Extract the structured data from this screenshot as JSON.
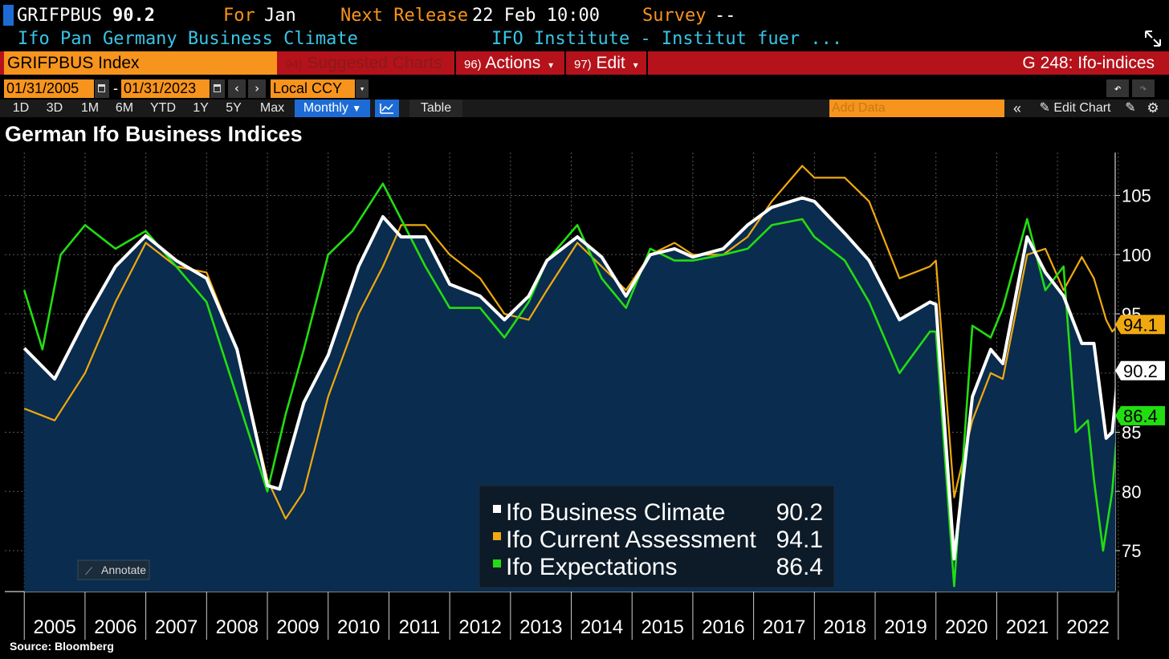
{
  "header": {
    "ticker": "GRIFPBUS",
    "value": "90.2",
    "for_label": "For",
    "for_value": "Jan",
    "next_release_label": "Next Release",
    "next_release_value": "22 Feb 10:00",
    "survey_label": "Survey",
    "survey_value": "--",
    "description": "Ifo Pan Germany Business Climate",
    "source_org": "IFO Institute - Institut fuer ..."
  },
  "toolbar": {
    "security": "GRIFPBUS Index",
    "suggested_num": "94)",
    "suggested_label": "Suggested Charts",
    "actions_num": "96)",
    "actions_label": "Actions",
    "edit_num": "97)",
    "edit_label": "Edit",
    "page_id": "G 248: Ifo-indices"
  },
  "range": {
    "start_date": "01/31/2005",
    "end_date": "01/31/2023",
    "dash": "-",
    "currency": "Local CCY"
  },
  "periods": [
    "1D",
    "3D",
    "1M",
    "6M",
    "YTD",
    "1Y",
    "5Y",
    "Max"
  ],
  "frequency": "Monthly",
  "table_label": "Table",
  "add_data_placeholder": "Add Data",
  "edit_chart_label": "Edit Chart",
  "annotate_label": "Annotate",
  "source_text": "Source: Bloomberg",
  "colors": {
    "climate": "#ffffff",
    "current": "#f0a90f",
    "expectations": "#22dd11",
    "plot_bg": "#000000",
    "area_fill": "#0a2c4e",
    "orange": "#f7941d",
    "red_bar": "#b5121b",
    "cyan": "#39c5e6"
  },
  "chart_data": {
    "type": "line",
    "title": "German Ifo Business Indices",
    "x_labels": [
      "2005",
      "2006",
      "2007",
      "2008",
      "2009",
      "2010",
      "2011",
      "2012",
      "2013",
      "2014",
      "2015",
      "2016",
      "2017",
      "2018",
      "2019",
      "2020",
      "2021",
      "2022"
    ],
    "ylim": [
      72,
      108
    ],
    "yticks": [
      75,
      80,
      85,
      95,
      100,
      105
    ],
    "grid": true,
    "legend_position": "bottom-center",
    "series": [
      {
        "name": "Ifo Business Climate",
        "last": "90.2",
        "color": "#ffffff",
        "filled": true,
        "points": [
          [
            2005.0,
            92.1
          ],
          [
            2005.5,
            89.5
          ],
          [
            2006.0,
            94.5
          ],
          [
            2006.5,
            99
          ],
          [
            2007.0,
            101.6
          ],
          [
            2007.5,
            99.5
          ],
          [
            2008.0,
            98
          ],
          [
            2008.5,
            92
          ],
          [
            2009.0,
            80.5
          ],
          [
            2009.2,
            80.2
          ],
          [
            2009.6,
            87.5
          ],
          [
            2010.0,
            91.5
          ],
          [
            2010.5,
            99
          ],
          [
            2010.9,
            103.2
          ],
          [
            2011.2,
            101.5
          ],
          [
            2011.6,
            101.5
          ],
          [
            2012.0,
            97.5
          ],
          [
            2012.5,
            96.5
          ],
          [
            2012.9,
            94.5
          ],
          [
            2013.3,
            96.5
          ],
          [
            2013.6,
            99.5
          ],
          [
            2014.1,
            101.5
          ],
          [
            2014.5,
            99.8
          ],
          [
            2014.9,
            96.5
          ],
          [
            2015.3,
            100
          ],
          [
            2015.7,
            100.5
          ],
          [
            2016.0,
            99.8
          ],
          [
            2016.5,
            100.5
          ],
          [
            2016.9,
            102.5
          ],
          [
            2017.3,
            104
          ],
          [
            2017.8,
            104.8
          ],
          [
            2018.0,
            104.5
          ],
          [
            2018.5,
            101.8
          ],
          [
            2018.9,
            99.5
          ],
          [
            2019.4,
            94.5
          ],
          [
            2019.9,
            96
          ],
          [
            2020.0,
            95.8
          ],
          [
            2020.3,
            74.3
          ],
          [
            2020.6,
            88
          ],
          [
            2020.9,
            92
          ],
          [
            2021.1,
            90.8
          ],
          [
            2021.5,
            101.5
          ],
          [
            2021.8,
            98.5
          ],
          [
            2022.1,
            96.5
          ],
          [
            2022.4,
            92.5
          ],
          [
            2022.6,
            92.5
          ],
          [
            2022.8,
            84.5
          ],
          [
            2022.9,
            85
          ],
          [
            2023.0,
            90.2
          ]
        ]
      },
      {
        "name": "Ifo Current Assessment",
        "last": "94.1",
        "color": "#f0a90f",
        "filled": false,
        "points": [
          [
            2005.0,
            87
          ],
          [
            2005.5,
            86
          ],
          [
            2006.0,
            90
          ],
          [
            2006.5,
            96
          ],
          [
            2007.0,
            101
          ],
          [
            2007.5,
            99
          ],
          [
            2008.0,
            98.5
          ],
          [
            2008.5,
            92
          ],
          [
            2009.0,
            81
          ],
          [
            2009.3,
            77.7
          ],
          [
            2009.6,
            80
          ],
          [
            2010.0,
            88
          ],
          [
            2010.5,
            95
          ],
          [
            2010.9,
            99
          ],
          [
            2011.2,
            102.5
          ],
          [
            2011.6,
            102.5
          ],
          [
            2012.0,
            100
          ],
          [
            2012.5,
            98
          ],
          [
            2012.9,
            95
          ],
          [
            2013.3,
            94.5
          ],
          [
            2013.6,
            97
          ],
          [
            2014.1,
            101
          ],
          [
            2014.5,
            99
          ],
          [
            2014.9,
            97
          ],
          [
            2015.3,
            100
          ],
          [
            2015.7,
            101
          ],
          [
            2016.0,
            100
          ],
          [
            2016.5,
            100
          ],
          [
            2016.9,
            101.5
          ],
          [
            2017.3,
            104.5
          ],
          [
            2017.8,
            107.5
          ],
          [
            2018.0,
            106.5
          ],
          [
            2018.5,
            106.5
          ],
          [
            2018.9,
            104.5
          ],
          [
            2019.4,
            98
          ],
          [
            2019.9,
            99
          ],
          [
            2020.0,
            99.5
          ],
          [
            2020.3,
            79.5
          ],
          [
            2020.6,
            86
          ],
          [
            2020.9,
            90
          ],
          [
            2021.1,
            89.5
          ],
          [
            2021.5,
            100
          ],
          [
            2021.8,
            100.5
          ],
          [
            2022.1,
            97
          ],
          [
            2022.4,
            99.8
          ],
          [
            2022.6,
            98
          ],
          [
            2022.8,
            94.5
          ],
          [
            2022.9,
            93.5
          ],
          [
            2023.0,
            94.1
          ]
        ]
      },
      {
        "name": "Ifo Expectations",
        "last": "86.4",
        "color": "#22dd11",
        "filled": false,
        "points": [
          [
            2005.0,
            97
          ],
          [
            2005.3,
            92
          ],
          [
            2005.6,
            100
          ],
          [
            2006.0,
            102.5
          ],
          [
            2006.5,
            100.5
          ],
          [
            2007.0,
            102
          ],
          [
            2007.5,
            99
          ],
          [
            2008.0,
            96
          ],
          [
            2008.5,
            88
          ],
          [
            2009.0,
            80
          ],
          [
            2009.3,
            86.5
          ],
          [
            2009.6,
            92
          ],
          [
            2010.0,
            100
          ],
          [
            2010.4,
            102
          ],
          [
            2010.9,
            106
          ],
          [
            2011.2,
            103
          ],
          [
            2011.6,
            99
          ],
          [
            2012.0,
            95.5
          ],
          [
            2012.5,
            95.5
          ],
          [
            2012.9,
            93
          ],
          [
            2013.3,
            96
          ],
          [
            2013.6,
            99.5
          ],
          [
            2014.1,
            102.5
          ],
          [
            2014.5,
            98
          ],
          [
            2014.9,
            95.5
          ],
          [
            2015.3,
            100.5
          ],
          [
            2015.7,
            99.5
          ],
          [
            2016.0,
            99.5
          ],
          [
            2016.5,
            100
          ],
          [
            2016.9,
            100.5
          ],
          [
            2017.3,
            102.5
          ],
          [
            2017.8,
            103
          ],
          [
            2018.0,
            101.5
          ],
          [
            2018.5,
            99.5
          ],
          [
            2018.9,
            96
          ],
          [
            2019.4,
            90
          ],
          [
            2019.9,
            93.5
          ],
          [
            2020.0,
            93.5
          ],
          [
            2020.3,
            72
          ],
          [
            2020.6,
            94
          ],
          [
            2020.9,
            93
          ],
          [
            2021.1,
            95.5
          ],
          [
            2021.5,
            103
          ],
          [
            2021.8,
            97
          ],
          [
            2022.1,
            99
          ],
          [
            2022.3,
            85
          ],
          [
            2022.5,
            86
          ],
          [
            2022.6,
            81
          ],
          [
            2022.75,
            75
          ],
          [
            2022.9,
            80
          ],
          [
            2023.0,
            86.4
          ]
        ]
      }
    ]
  }
}
